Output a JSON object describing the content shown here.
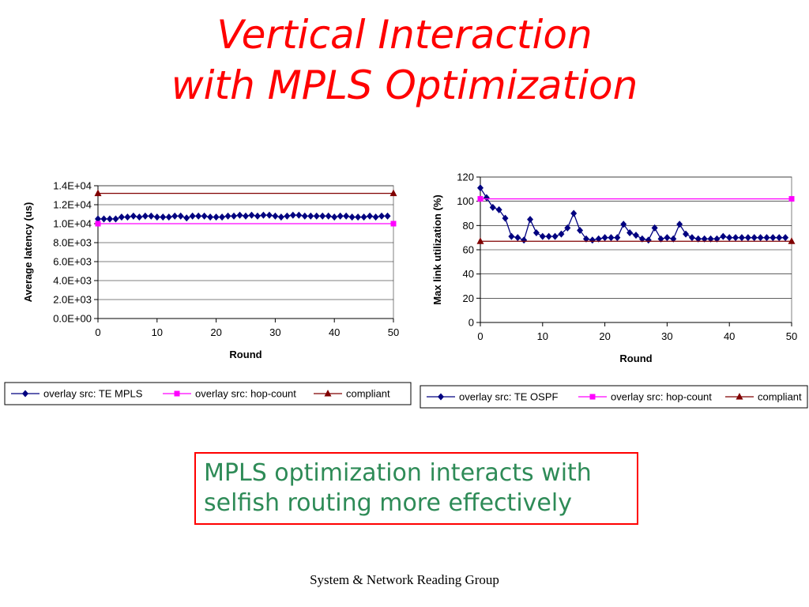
{
  "slide": {
    "title_line1": "Vertical Interaction",
    "title_line2": "with MPLS Optimization",
    "callout_line1": "MPLS optimization interacts with",
    "callout_line2": "selfish routing more effectively",
    "footer": "System & Network Reading Group",
    "colors": {
      "title": "#ff0000",
      "callout_text": "#2e8b57",
      "callout_border": "#ff0000"
    }
  },
  "chart_data": [
    {
      "type": "line",
      "xlabel": "Round",
      "ylabel": "Average latency (us)",
      "xlim": [
        0,
        50
      ],
      "ylim": [
        0,
        14000
      ],
      "x_ticks": [
        "0",
        "10",
        "20",
        "30",
        "40",
        "50"
      ],
      "y_ticks": [
        "0.0E+00",
        "2.0E+03",
        "4.0E+03",
        "6.0E+03",
        "8.0E+03",
        "1.0E+04",
        "1.2E+04",
        "1.4E+04"
      ],
      "grid": true,
      "legend_position": "bottom",
      "series": [
        {
          "name": "overlay src: TE MPLS",
          "color": "#000080",
          "marker": "diamond",
          "x": [
            0,
            1,
            2,
            3,
            4,
            5,
            6,
            7,
            8,
            9,
            10,
            11,
            12,
            13,
            14,
            15,
            16,
            17,
            18,
            19,
            20,
            21,
            22,
            23,
            24,
            25,
            26,
            27,
            28,
            29,
            30,
            31,
            32,
            33,
            34,
            35,
            36,
            37,
            38,
            39,
            40,
            41,
            42,
            43,
            44,
            45,
            46,
            47,
            48,
            49
          ],
          "y": [
            10500,
            10500,
            10500,
            10500,
            10700,
            10700,
            10800,
            10700,
            10800,
            10800,
            10700,
            10700,
            10700,
            10800,
            10800,
            10600,
            10800,
            10800,
            10800,
            10700,
            10700,
            10700,
            10800,
            10800,
            10900,
            10800,
            10900,
            10800,
            10900,
            10900,
            10800,
            10700,
            10800,
            10900,
            10900,
            10800,
            10800,
            10800,
            10800,
            10800,
            10700,
            10800,
            10800,
            10700,
            10700,
            10700,
            10800,
            10700,
            10800,
            10800
          ]
        },
        {
          "name": "overlay src: hop-count",
          "color": "#ff00ff",
          "marker": "square",
          "x": [
            0,
            50
          ],
          "y": [
            10000,
            10000
          ]
        },
        {
          "name": "compliant",
          "color": "#800000",
          "marker": "triangle",
          "x": [
            0,
            50
          ],
          "y": [
            13200,
            13200
          ]
        }
      ]
    },
    {
      "type": "line",
      "xlabel": "Round",
      "ylabel": "Max link utilization (%)",
      "xlim": [
        0,
        50
      ],
      "ylim": [
        0,
        120
      ],
      "x_ticks": [
        "0",
        "10",
        "20",
        "30",
        "40",
        "50"
      ],
      "y_ticks": [
        "0",
        "20",
        "40",
        "60",
        "80",
        "100",
        "120"
      ],
      "grid": true,
      "legend_position": "bottom",
      "series": [
        {
          "name": "overlay src: TE OSPF",
          "color": "#000080",
          "marker": "diamond",
          "x": [
            0,
            1,
            2,
            3,
            4,
            5,
            6,
            7,
            8,
            9,
            10,
            11,
            12,
            13,
            14,
            15,
            16,
            17,
            18,
            19,
            20,
            21,
            22,
            23,
            24,
            25,
            26,
            27,
            28,
            29,
            30,
            31,
            32,
            33,
            34,
            35,
            36,
            37,
            38,
            39,
            40,
            41,
            42,
            43,
            44,
            45,
            46,
            47,
            48,
            49
          ],
          "y": [
            111,
            103,
            95,
            93,
            86,
            71,
            70,
            68,
            85,
            74,
            71,
            71,
            71,
            73,
            78,
            90,
            76,
            69,
            68,
            69,
            70,
            70,
            70,
            81,
            74,
            72,
            69,
            68,
            78,
            69,
            70,
            69,
            81,
            73,
            70,
            69,
            69,
            69,
            69,
            71,
            70,
            70,
            70,
            70,
            70,
            70,
            70,
            70,
            70,
            70
          ]
        },
        {
          "name": "overlay src: hop-count",
          "color": "#ff00ff",
          "marker": "square",
          "x": [
            0,
            50
          ],
          "y": [
            102,
            102
          ]
        },
        {
          "name": "compliant",
          "color": "#800000",
          "marker": "triangle",
          "x": [
            0,
            50
          ],
          "y": [
            67,
            67
          ]
        }
      ]
    }
  ]
}
